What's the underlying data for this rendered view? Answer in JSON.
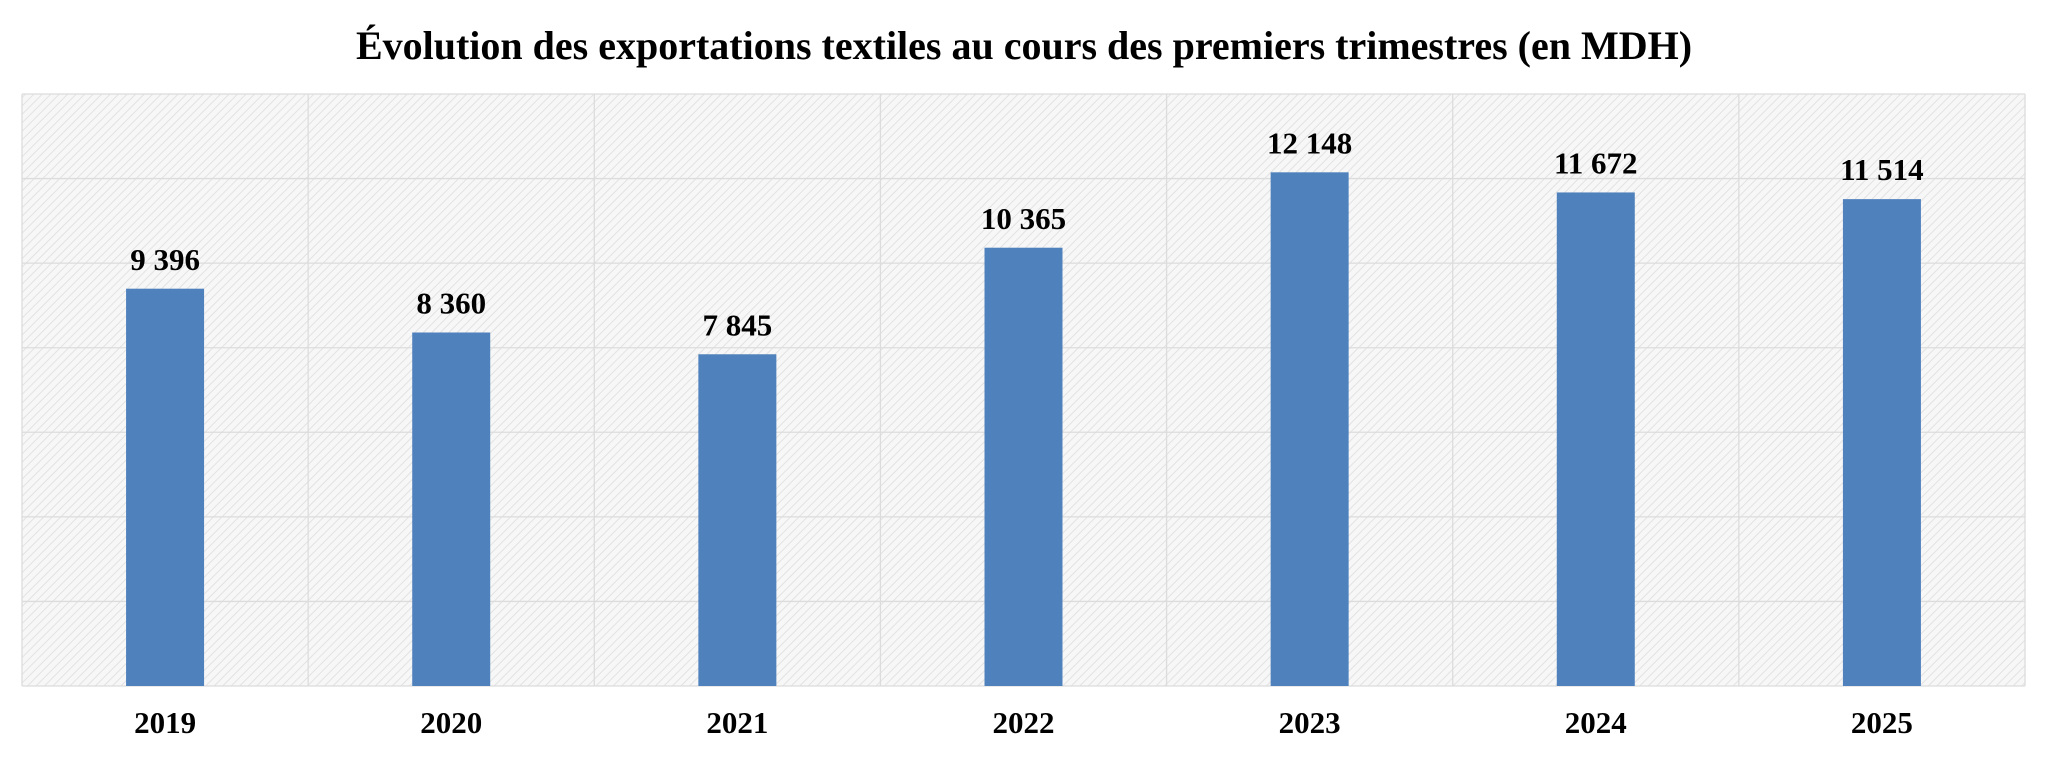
{
  "chart_data": {
    "type": "bar",
    "title": "Évolution des exportations textiles au cours des premiers trimestres (en MDH)",
    "categories": [
      "2019",
      "2020",
      "2021",
      "2022",
      "2023",
      "2024",
      "2025"
    ],
    "values": [
      9396,
      8360,
      7845,
      10365,
      12148,
      11672,
      11514
    ],
    "value_labels": [
      "9 396",
      "8 360",
      "7 845",
      "10 365",
      "12 148",
      "11 672",
      "11 514"
    ],
    "color": "#4f81bd",
    "ylim": [
      0,
      14000
    ],
    "yticks": [
      0,
      2000,
      4000,
      6000,
      8000,
      10000,
      12000,
      14000
    ],
    "grid": true
  }
}
